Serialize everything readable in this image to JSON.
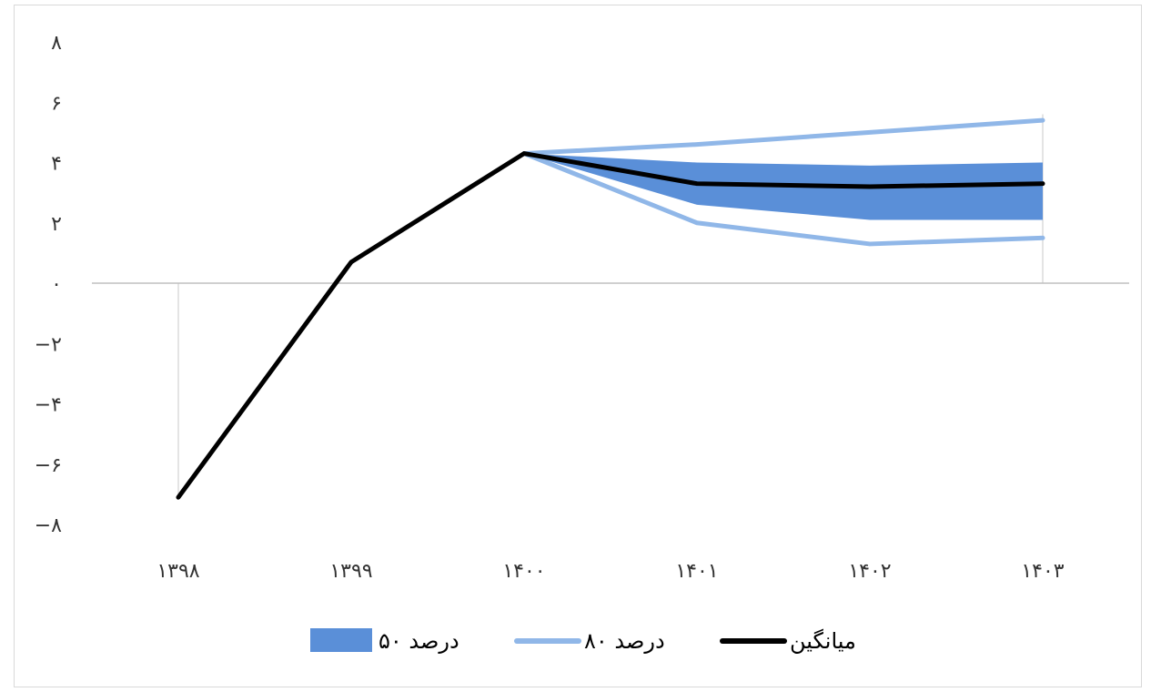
{
  "chart_data": {
    "type": "line",
    "title": "",
    "xlabel": "",
    "ylabel": "",
    "categories": [
      "۱۳۹۸",
      "۱۳۹۹",
      "۱۴۰۰",
      "۱۴۰۱",
      "۱۴۰۲",
      "۱۴۰۳"
    ],
    "y_ticks": [
      {
        "value": 8,
        "label": "۸"
      },
      {
        "value": 6,
        "label": "۶"
      },
      {
        "value": 4,
        "label": "۴"
      },
      {
        "value": 2,
        "label": "۲"
      },
      {
        "value": 0,
        "label": "۰"
      },
      {
        "value": -2,
        "label": "−۲"
      },
      {
        "value": -4,
        "label": "−۴"
      },
      {
        "value": -6,
        "label": "−۶"
      },
      {
        "value": -8,
        "label": "−۸"
      }
    ],
    "ylim": [
      -8,
      8
    ],
    "grid": false,
    "legend_position": "bottom",
    "colors": {
      "band50": "#5a8fd8",
      "band80": "#90b7e8",
      "mean": "#000000"
    },
    "series": [
      {
        "name": "میانگین",
        "kind": "line",
        "values": [
          -7.1,
          0.7,
          4.3,
          3.3,
          3.2,
          3.3
        ]
      },
      {
        "name": "۸۰ درصد",
        "kind": "band-lines",
        "start_index": 2,
        "upper": [
          4.3,
          4.6,
          5.0,
          5.4
        ],
        "lower": [
          4.3,
          2.0,
          1.3,
          1.5
        ]
      },
      {
        "name": "۵۰ درصد",
        "kind": "band-fill",
        "start_index": 2,
        "upper": [
          4.3,
          4.0,
          3.9,
          4.0
        ],
        "lower": [
          4.3,
          2.6,
          2.1,
          2.1
        ]
      }
    ],
    "legend": [
      {
        "label": "۵۰ درصد",
        "kind": "band-fill"
      },
      {
        "label": "۸۰ درصد",
        "kind": "band-lines"
      },
      {
        "label": "میانگین",
        "kind": "line"
      }
    ]
  }
}
